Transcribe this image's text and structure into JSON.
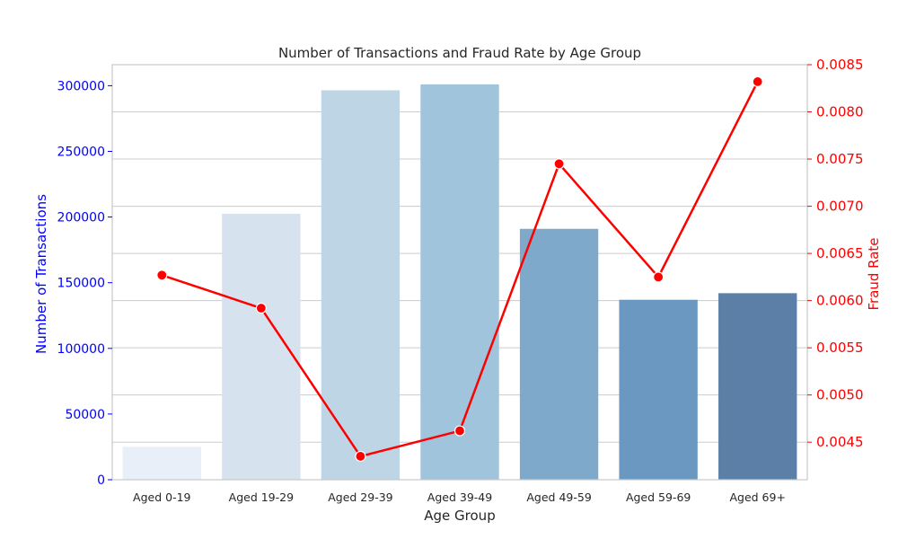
{
  "chart_data": {
    "type": "bar",
    "title": "Number of Transactions and Fraud Rate by Age Group",
    "xlabel": "Age Group",
    "ylabel": "Number of Transactions",
    "y2label": "Fraud Rate",
    "categories": [
      "Aged 0-19",
      "Aged 19-29",
      "Aged 29-39",
      "Aged 39-49",
      "Aged 49-59",
      "Aged 59-69",
      "Aged 69+"
    ],
    "series": [
      {
        "type": "bar",
        "axis": "left",
        "values": [
          25000,
          202500,
          296500,
          301000,
          191000,
          137000,
          142000
        ],
        "colors": [
          "#e8eff8",
          "#d6e3ef",
          "#bdd5e5",
          "#9fc4dc",
          "#7ea9cb",
          "#6a98c1",
          "#5b7fa6"
        ]
      },
      {
        "type": "line",
        "axis": "right",
        "color": "#ff0000",
        "values": [
          0.00627,
          0.00592,
          0.00435,
          0.00462,
          0.00745,
          0.00625,
          0.00832
        ]
      }
    ],
    "ylim": [
      0,
      316000
    ],
    "y_ticks": [
      0,
      50000,
      100000,
      150000,
      200000,
      250000,
      300000
    ],
    "y_tick_labels": [
      "0",
      "50000",
      "100000",
      "150000",
      "200000",
      "250000",
      "300000"
    ],
    "y2lim": [
      0.004102,
      0.0085
    ],
    "y2_ticks": [
      0.0045,
      0.005,
      0.0055,
      0.006,
      0.0065,
      0.007,
      0.0075,
      0.008,
      0.0085
    ],
    "y2_tick_labels": [
      "0.0045",
      "0.0050",
      "0.0055",
      "0.0060",
      "0.0065",
      "0.0070",
      "0.0075",
      "0.0080",
      "0.0085"
    ],
    "grid": true,
    "colors": {
      "left_axis": "#0000ff",
      "right_axis": "#ff0000",
      "grid": "#cccccc",
      "frame": "#c8c8c8"
    }
  }
}
